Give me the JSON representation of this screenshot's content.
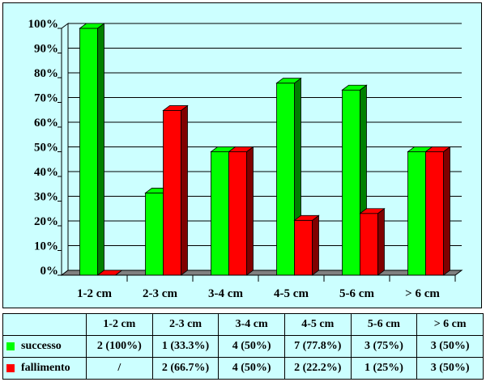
{
  "chart_data": {
    "type": "bar",
    "categories": [
      "1-2 cm",
      "2-3 cm",
      "3-4 cm",
      "4-5 cm",
      "5-6 cm",
      "> 6 cm"
    ],
    "series": [
      {
        "name": "successo",
        "values": [
          100,
          33.3,
          50,
          77.8,
          75,
          50
        ],
        "color": "#00ff00",
        "side_color": "#008000"
      },
      {
        "name": "fallimento",
        "values": [
          0,
          66.7,
          50,
          22.2,
          25,
          50
        ],
        "color": "#ff0000",
        "side_color": "#800000"
      }
    ],
    "ylim": [
      0,
      100
    ],
    "y_ticks": [
      0,
      10,
      20,
      30,
      40,
      50,
      60,
      70,
      80,
      90,
      100
    ],
    "y_tick_labels": [
      "0%",
      "10%",
      "20%",
      "30%",
      "40%",
      "50%",
      "60%",
      "70%",
      "80%",
      "90%",
      "100%"
    ],
    "grid": true,
    "style": "3d-bar",
    "title": "",
    "xlabel": "",
    "ylabel": ""
  },
  "table": {
    "header": [
      "",
      "1-2 cm",
      "2-3 cm",
      "3-4 cm",
      "4-5 cm",
      "5-6 cm",
      "> 6 cm"
    ],
    "rows": [
      {
        "label": "successo",
        "color": "#00ff00",
        "cells": [
          "2 (100%)",
          "1 (33.3%)",
          "4 (50%)",
          "7 (77.8%)",
          "3 (75%)",
          "3 (50%)"
        ]
      },
      {
        "label": "fallimento",
        "color": "#ff0000",
        "cells": [
          "/",
          "2 (66.7%)",
          "4 (50%)",
          "2 (22.2%)",
          "1 (25%)",
          "3 (50%)"
        ]
      }
    ]
  }
}
